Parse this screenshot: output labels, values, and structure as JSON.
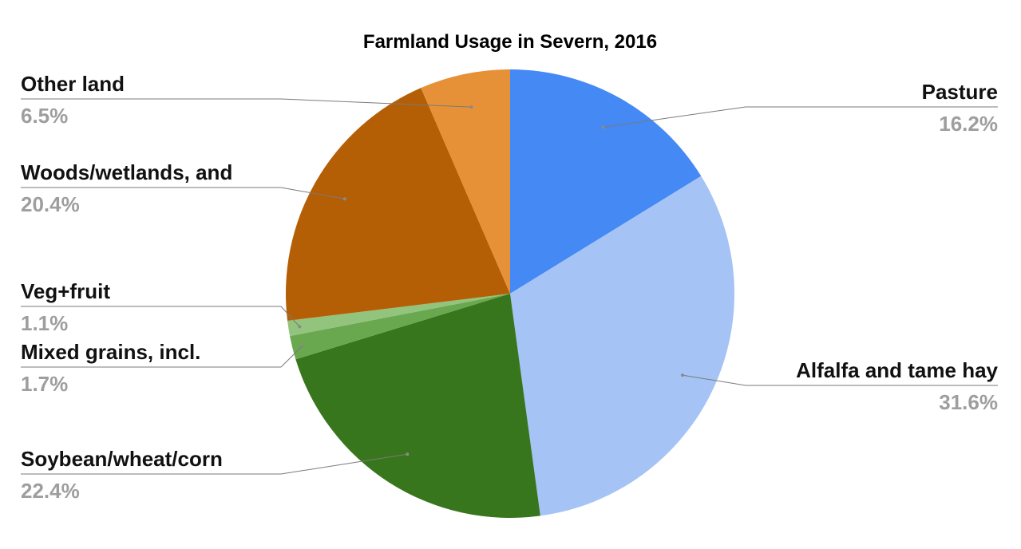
{
  "chart_data": {
    "type": "pie",
    "title": "Farmland Usage in Severn, 2016",
    "slices": [
      {
        "name": "Pasture",
        "percent_label": "16.2%",
        "value": 16.2,
        "color": "#4589f5"
      },
      {
        "name": "Alfalfa and tame hay",
        "percent_label": "31.6%",
        "value": 31.6,
        "color": "#a5c3f5"
      },
      {
        "name": "Soybean/wheat/corn",
        "percent_label": "22.4%",
        "value": 22.4,
        "color": "#38761d"
      },
      {
        "name": "Mixed grains, incl.",
        "percent_label": "1.7%",
        "value": 1.7,
        "color": "#6aa84f"
      },
      {
        "name": "Veg+fruit",
        "percent_label": "1.1%",
        "value": 1.1,
        "color": "#93c47d"
      },
      {
        "name": "Woods/wetlands, and",
        "percent_label": "20.4%",
        "value": 20.4,
        "color": "#b45f06"
      },
      {
        "name": "Other land",
        "percent_label": "6.5%",
        "value": 6.5,
        "color": "#e69138"
      }
    ],
    "start_angle": "12 o'clock",
    "direction": "clockwise",
    "legend": "none",
    "labels": "outside with leader lines"
  }
}
